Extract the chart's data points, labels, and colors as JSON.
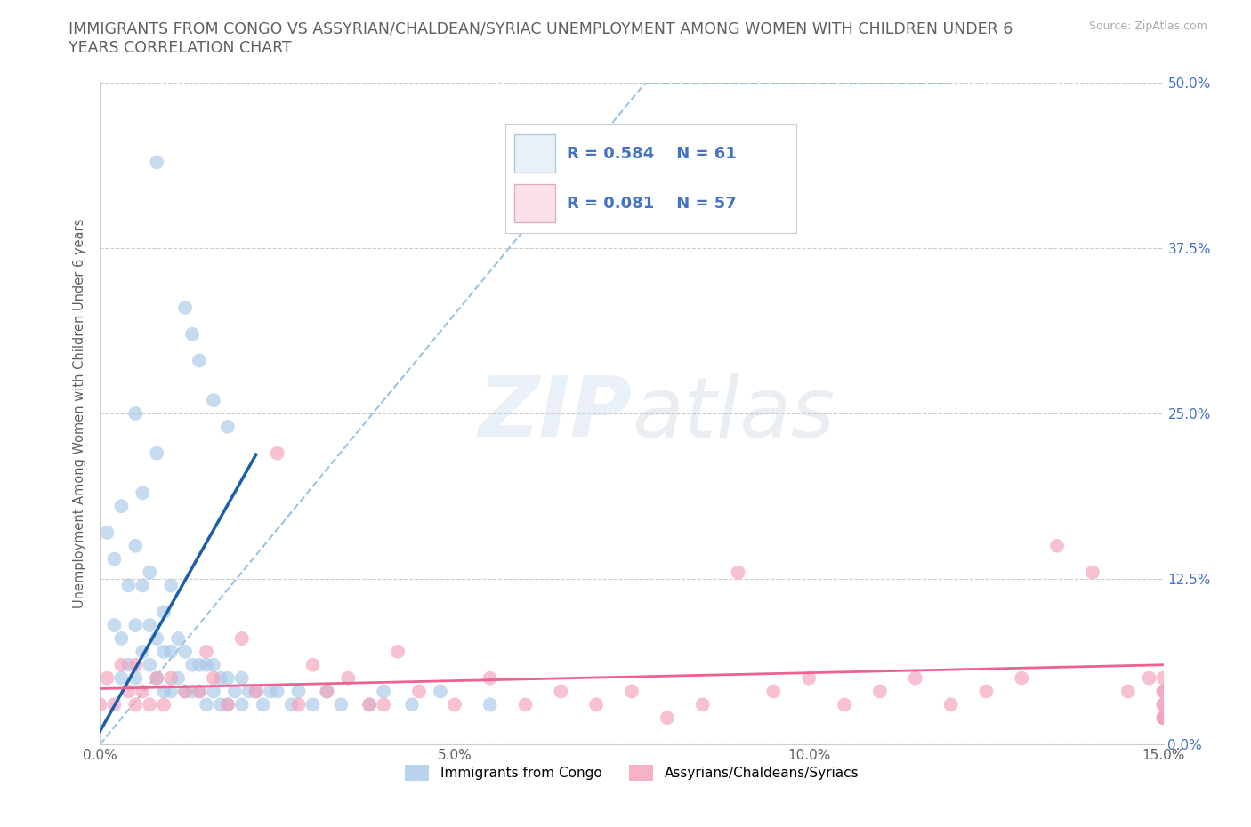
{
  "title_line1": "IMMIGRANTS FROM CONGO VS ASSYRIAN/CHALDEAN/SYRIAC UNEMPLOYMENT AMONG WOMEN WITH CHILDREN UNDER 6",
  "title_line2": "YEARS CORRELATION CHART",
  "source_text": "Source: ZipAtlas.com",
  "ylabel": "Unemployment Among Women with Children Under 6 years",
  "xlim": [
    0.0,
    0.15
  ],
  "ylim": [
    0.0,
    0.5
  ],
  "xticks": [
    0.0,
    0.05,
    0.1,
    0.15
  ],
  "xtick_labels": [
    "0.0%",
    "5.0%",
    "10.0%",
    "15.0%"
  ],
  "yticks": [
    0.0,
    0.125,
    0.25,
    0.375,
    0.5
  ],
  "ytick_labels_right": [
    "0.0%",
    "12.5%",
    "25.0%",
    "37.5%",
    "50.0%"
  ],
  "watermark_zip": "ZIP",
  "watermark_atlas": "atlas",
  "legend_R1": "0.584",
  "legend_N1": "61",
  "legend_R2": "0.081",
  "legend_N2": "57",
  "color_congo": "#a8c8e8",
  "color_assyrian": "#f4a0b8",
  "trendline_color_congo": "#1a5fa8",
  "trendline_color_assyrian": "#f06090",
  "dashed_line_color": "#90bce0",
  "background_color": "#ffffff",
  "grid_color": "#cccccc",
  "title_color": "#606060",
  "label_color": "#606060",
  "tick_color_blue": "#4472c4",
  "legend_box_color": "#e8f0f8",
  "legend_box_pink": "#fce0e8",
  "congo_scatter_x": [
    0.001,
    0.002,
    0.002,
    0.003,
    0.003,
    0.003,
    0.004,
    0.004,
    0.005,
    0.005,
    0.005,
    0.005,
    0.006,
    0.006,
    0.006,
    0.007,
    0.007,
    0.007,
    0.008,
    0.008,
    0.008,
    0.009,
    0.009,
    0.009,
    0.01,
    0.01,
    0.01,
    0.011,
    0.011,
    0.012,
    0.012,
    0.013,
    0.013,
    0.014,
    0.014,
    0.015,
    0.015,
    0.016,
    0.016,
    0.017,
    0.017,
    0.018,
    0.018,
    0.019,
    0.02,
    0.02,
    0.021,
    0.022,
    0.023,
    0.024,
    0.025,
    0.027,
    0.028,
    0.03,
    0.032,
    0.034,
    0.038,
    0.04,
    0.044,
    0.048,
    0.055
  ],
  "congo_scatter_y": [
    0.16,
    0.09,
    0.14,
    0.05,
    0.08,
    0.18,
    0.06,
    0.12,
    0.05,
    0.09,
    0.15,
    0.25,
    0.07,
    0.12,
    0.19,
    0.06,
    0.09,
    0.13,
    0.05,
    0.08,
    0.22,
    0.04,
    0.07,
    0.1,
    0.04,
    0.07,
    0.12,
    0.05,
    0.08,
    0.04,
    0.07,
    0.04,
    0.06,
    0.04,
    0.06,
    0.03,
    0.06,
    0.04,
    0.06,
    0.03,
    0.05,
    0.03,
    0.05,
    0.04,
    0.03,
    0.05,
    0.04,
    0.04,
    0.03,
    0.04,
    0.04,
    0.03,
    0.04,
    0.03,
    0.04,
    0.03,
    0.03,
    0.04,
    0.03,
    0.04,
    0.03
  ],
  "congo_outlier_x": [
    0.008,
    0.012,
    0.013,
    0.014,
    0.016,
    0.018
  ],
  "congo_outlier_y": [
    0.44,
    0.33,
    0.31,
    0.29,
    0.26,
    0.24
  ],
  "assyrian_scatter_x": [
    0.0,
    0.001,
    0.002,
    0.003,
    0.004,
    0.005,
    0.005,
    0.006,
    0.007,
    0.008,
    0.009,
    0.01,
    0.012,
    0.014,
    0.015,
    0.016,
    0.018,
    0.02,
    0.022,
    0.025,
    0.028,
    0.03,
    0.032,
    0.035,
    0.038,
    0.04,
    0.042,
    0.045,
    0.05,
    0.055,
    0.06,
    0.065,
    0.07,
    0.075,
    0.08,
    0.085,
    0.09,
    0.095,
    0.1,
    0.105,
    0.11,
    0.115,
    0.12,
    0.125,
    0.13,
    0.135,
    0.14,
    0.145,
    0.148,
    0.15,
    0.15,
    0.15,
    0.15,
    0.15,
    0.15,
    0.15,
    0.15
  ],
  "assyrian_scatter_y": [
    0.03,
    0.05,
    0.03,
    0.06,
    0.04,
    0.03,
    0.06,
    0.04,
    0.03,
    0.05,
    0.03,
    0.05,
    0.04,
    0.04,
    0.07,
    0.05,
    0.03,
    0.08,
    0.04,
    0.22,
    0.03,
    0.06,
    0.04,
    0.05,
    0.03,
    0.03,
    0.07,
    0.04,
    0.03,
    0.05,
    0.03,
    0.04,
    0.03,
    0.04,
    0.02,
    0.03,
    0.13,
    0.04,
    0.05,
    0.03,
    0.04,
    0.05,
    0.03,
    0.04,
    0.05,
    0.15,
    0.13,
    0.04,
    0.05,
    0.02,
    0.03,
    0.04,
    0.02,
    0.05,
    0.03,
    0.04,
    0.02
  ],
  "dashed_slope": 6.5,
  "congo_trend_slope": 9.5,
  "congo_trend_intercept": 0.01,
  "assyrian_trend_slope": 0.12,
  "assyrian_trend_intercept": 0.042
}
